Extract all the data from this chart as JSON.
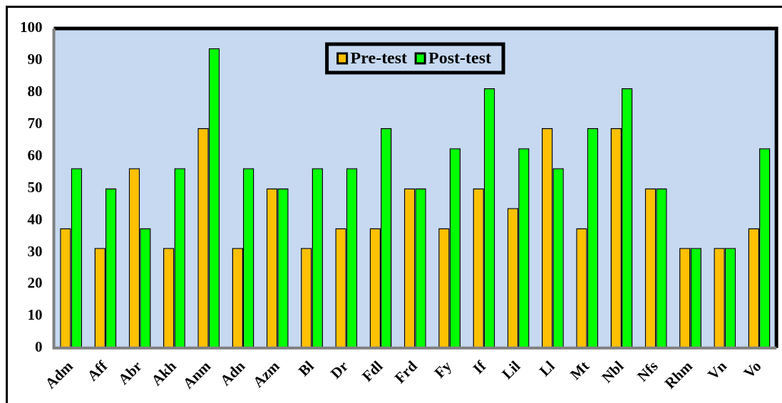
{
  "chart_data": {
    "type": "bar",
    "categories": [
      "Adm",
      "Aff",
      "Abr",
      "Akh",
      "Anm",
      "Adn",
      "Azm",
      "Bl",
      "Dr",
      "Fdl",
      "Frd",
      "Fy",
      "If",
      "Lil",
      "Ll",
      "Mt",
      "Nbl",
      "Nfs",
      "Rhm",
      "Vn",
      "Vo"
    ],
    "series": [
      {
        "name": "Pre-test",
        "color": "#ffc000",
        "values": [
          37.5,
          31.3,
          56.3,
          31.3,
          68.8,
          31.3,
          50,
          31.3,
          37.5,
          37.5,
          50,
          37.5,
          50,
          43.8,
          68.8,
          37.5,
          68.8,
          50,
          31.3,
          31.3,
          37.5
        ]
      },
      {
        "name": "Post-test",
        "color": "#00ff00",
        "values": [
          56.3,
          50,
          37.5,
          56.3,
          93.8,
          56.3,
          50,
          56.3,
          56.3,
          68.8,
          50,
          62.5,
          81.3,
          62.5,
          56.3,
          68.8,
          81.3,
          50,
          31.3,
          31.3,
          62.5
        ]
      }
    ],
    "ylim": [
      0,
      100
    ],
    "yticks": [
      0,
      10,
      20,
      30,
      40,
      50,
      60,
      70,
      80,
      90,
      100
    ],
    "grid": false,
    "legend": "top"
  }
}
